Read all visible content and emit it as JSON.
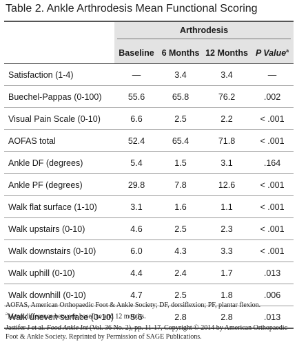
{
  "title": "Table 2.  Ankle Arthrodesis Mean Functional Scoring",
  "group_header": "Arthrodesis",
  "columns": [
    "Baseline",
    "6 Months",
    "12 Months",
    "P Value"
  ],
  "pvalue_marker": "a",
  "rows": [
    {
      "label": "Satisfaction (1-4)",
      "baseline": "—",
      "m6": "3.4",
      "m12": "3.4",
      "p": "—"
    },
    {
      "label": "Buechel-Pappas (0-100)",
      "baseline": "55.6",
      "m6": "65.8",
      "m12": "76.2",
      "p": ".002"
    },
    {
      "label": "Visual Pain Scale (0-10)",
      "baseline": "6.6",
      "m6": "2.5",
      "m12": "2.2",
      "p": "< .001"
    },
    {
      "label": "AOFAS total",
      "baseline": "52.4",
      "m6": "65.4",
      "m12": "71.8",
      "p": "< .001"
    },
    {
      "label": "Ankle DF (degrees)",
      "baseline": "5.4",
      "m6": "1.5",
      "m12": "3.1",
      "p": ".164"
    },
    {
      "label": "Ankle PF (degrees)",
      "baseline": "29.8",
      "m6": "7.8",
      "m12": "12.6",
      "p": "< .001"
    },
    {
      "label": "Walk flat surface (1-10)",
      "baseline": "3.1",
      "m6": "1.6",
      "m12": "1.1",
      "p": "< .001"
    },
    {
      "label": "Walk upstairs (0-10)",
      "baseline": "4.6",
      "m6": "2.5",
      "m12": "2.3",
      "p": "< .001"
    },
    {
      "label": "Walk downstairs (0-10)",
      "baseline": "6.0",
      "m6": "4.3",
      "m12": "3.3",
      "p": "< .001"
    },
    {
      "label": "Walk uphill (0-10)",
      "baseline": "4.4",
      "m6": "2.4",
      "m12": "1.7",
      "p": ".013"
    },
    {
      "label": "Walk downhill (0-10)",
      "baseline": "4.7",
      "m6": "2.5",
      "m12": "1.8",
      "p": ".006"
    },
    {
      "label": "Walk uneven surface (0-10)",
      "baseline": "5.6",
      "m6": "2.8",
      "m12": "2.8",
      "p": ".013"
    }
  ],
  "footnotes": {
    "abbrev": "AOFAS, American Orthopaedic Foot & Ankle Society; DF, dorsiflexion; PF, plantar flexion.",
    "a_marker": "a",
    "a_text": "Mean difference between baseline and 12 months.",
    "citation_pre": "Jastifer J et al. ",
    "citation_journal": "Food Ankle Int",
    "citation_post": " (Vol. 36 No. 2), pp. 11-17, Copyright © 2014 by American Orthopaedic Foot & Ankle Society. Reprinted by Permission of SAGE Publications."
  }
}
